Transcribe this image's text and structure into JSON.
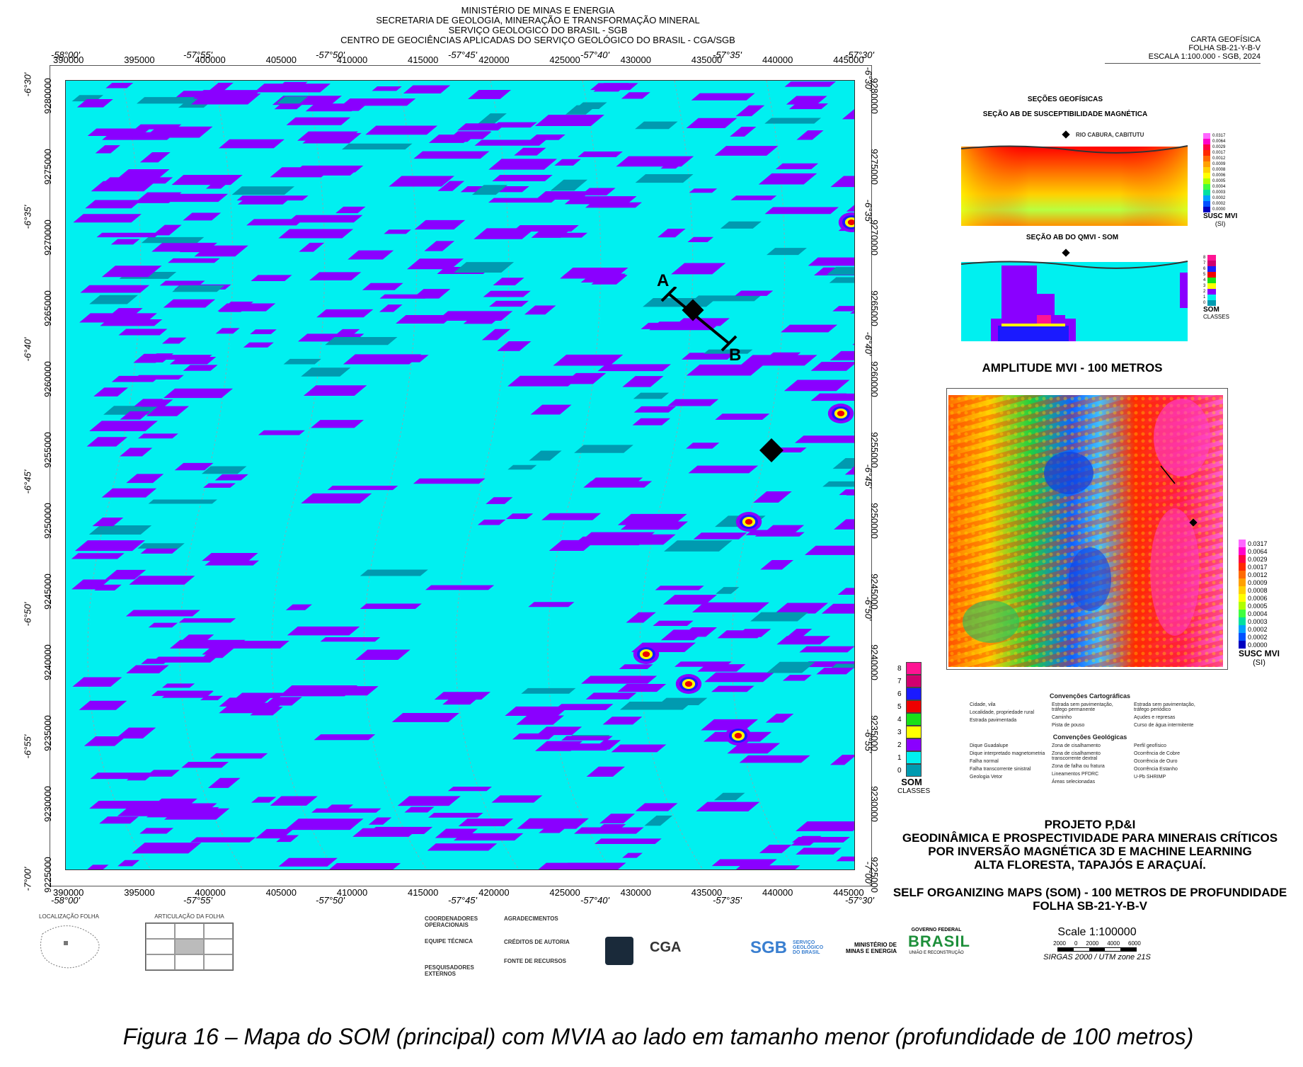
{
  "header": {
    "lines": [
      "MINISTÉRIO DE MINAS E ENERGIA",
      "SECRETARIA DE GEOLOGIA, MINERAÇÃO E TRANSFORMAÇÃO MINERAL",
      "SERVIÇO GEOLOGICO DO BRASIL - SGB",
      "CENTRO DE GEOCIÊNCIAS APLICADAS DO SERVIÇO GEOLÓGICO DO BRASIL  - CGA/SGB"
    ]
  },
  "carta": {
    "lines": [
      "CARTA GEOFÍSICA",
      "FOLHA SB-21-Y-B-V",
      "ESCALA 1:100.000 - SGB, 2024"
    ]
  },
  "map": {
    "x_ticks": [
      "390000",
      "395000",
      "400000",
      "405000",
      "410000",
      "415000",
      "420000",
      "425000",
      "430000",
      "435000",
      "440000",
      "445000"
    ],
    "lon_ticks": [
      "-58°00'",
      "-57°55'",
      "-57°50'",
      "-57°45'",
      "-57°40'",
      "-57°35'",
      "-57°30'"
    ],
    "y_ticks": [
      "9280000",
      "9275000",
      "9270000",
      "9265000",
      "9260000",
      "9255000",
      "9250000",
      "9245000",
      "9240000",
      "9235000",
      "9230000",
      "9225000"
    ],
    "lat_ticks": [
      "-6°30'",
      "-6°35'",
      "-6°40'",
      "-6°45'",
      "-6°50'",
      "-6°55'",
      "-7°00'"
    ],
    "profile_a": "A",
    "profile_b": "B",
    "background_color": "#00f0f0",
    "class_color": "#8a00ff",
    "legend": {
      "title": "SOM",
      "subtitle": "CLASSES",
      "classes": [
        {
          "label": "8",
          "color": "#ff1493"
        },
        {
          "label": "7",
          "color": "#d0006f"
        },
        {
          "label": "6",
          "color": "#1a1aff"
        },
        {
          "label": "5",
          "color": "#ee0000"
        },
        {
          "label": "4",
          "color": "#18e018"
        },
        {
          "label": "3",
          "color": "#ffff00"
        },
        {
          "label": "2",
          "color": "#8a00ff"
        },
        {
          "label": "1",
          "color": "#00f0f0"
        },
        {
          "label": "0",
          "color": "#009ab0"
        }
      ]
    }
  },
  "sections": {
    "title": "SEÇÕES GEOFÍSICAS",
    "mag_title": "SEÇÃO AB DE SUSCEPTIBILIDADE MAGNÉTICA",
    "river_label": "RIO CABURA, CABITUTU",
    "som_title": "SEÇÃO AB DO QMVI - SOM",
    "scale_values": [
      "0.0317",
      "0.0064",
      "0.0029",
      "0.0017",
      "0.0012",
      "0.0009",
      "0.0008",
      "0.0006",
      "0.0005",
      "0.0004",
      "0.0003",
      "0.0002",
      "0.0002",
      "0.0000"
    ],
    "susc_label": "SUSC MVI",
    "susc_unit": "(SI)",
    "som_label": "SOM",
    "som_classes": "CLASSES"
  },
  "amplitude": {
    "title": "AMPLITUDE MVI - 100 METROS",
    "scale_values": [
      "0.0317",
      "0.0064",
      "0.0029",
      "0.0017",
      "0.0012",
      "0.0009",
      "0.0008",
      "0.0006",
      "0.0005",
      "0.0004",
      "0.0003",
      "0.0002",
      "0.0002",
      "0.0000"
    ],
    "susc_label": "SUSC MVI",
    "susc_unit": "(SI)"
  },
  "conventions": {
    "carto_title": "Convenções Cartográficas",
    "carto_items": [
      "Cidade, vila",
      "Localidade, propriedade rural",
      "Estrada pavimentada",
      "Estrada sem pavimentação, tráfego permanente",
      "Caminho",
      "Pista de pouso",
      "Estrada sem pavimentação, tráfego periódico",
      "Açudes e represas",
      "Curso de água intermitente"
    ],
    "geo_title": "Convenções Geológicas",
    "geo_items": [
      "Dique Guadalupe",
      "Dique interpretado magnetometria",
      "Falha normal",
      "Falha transcorrente sinistral",
      "Geologia Vetor",
      "Zona de cisalhamento",
      "Zona de cisalhamento transcorrente dextral",
      "Zona de falha ou fratura",
      "Lineamentos PFDRC",
      "Áreas selecionadas",
      "Perfil geofísico",
      "Ocorrência de Cobre",
      "Ocorrência de Ouro",
      "Ocorrência Estanho",
      "U-Pb SHRIMP"
    ]
  },
  "project": {
    "lines": [
      "PROJETO P,D&I",
      "GEODINÂMICA E PROSPECTIVIDADE PARA MINERAIS CRÍTICOS",
      "POR INVERSÃO MAGNÉTICA 3D E MACHINE LEARNING",
      "ALTA FLORESTA, TAPAJÓS E ARAÇUAÍ."
    ]
  },
  "som_map_title": {
    "lines": [
      "SELF ORGANIZING MAPS (SOM) - 100 METROS DE PROFUNDIDADE",
      "FOLHA SB-21-Y-B-V"
    ]
  },
  "scale_block": {
    "scale": "Scale 1:100000",
    "bar_labels": [
      "2000",
      "0",
      "2000",
      "4000",
      "6000"
    ],
    "crs": "SIRGAS 2000 / UTM zone 21S"
  },
  "footer": {
    "location_title": "LOCALIZAÇÃO FOLHA",
    "articulation_title": "ARTICULAÇÃO DA FOLHA",
    "coord_title": "COORDENADORES OPERACIONAIS",
    "team_title": "EQUIPE TÉCNICA",
    "credits_title": "CRÉDITOS DE AUTORIA",
    "sources_title": "FONTE DE RECURSOS",
    "thanks_title": "AGRADECIMENTOS",
    "external_title": "PESQUISADORES EXTERNOS",
    "logo_cga": "CGA",
    "logo_sgb": "SGB",
    "logo_sgb_sub": "SERVIÇO GEOLÓGICO DO BRASIL",
    "logo_mme": "MINISTÉRIO DE MINAS E ENERGIA",
    "logo_gov_top": "GOVERNO FEDERAL",
    "logo_brasil": "BRASIL",
    "logo_gov_bottom": "UNIÃO E RECONSTRUÇÃO"
  },
  "caption": "Figura 16 – Mapa do SOM (principal) com MVIA ao lado em tamanho menor (profundidade de 100 metros)"
}
